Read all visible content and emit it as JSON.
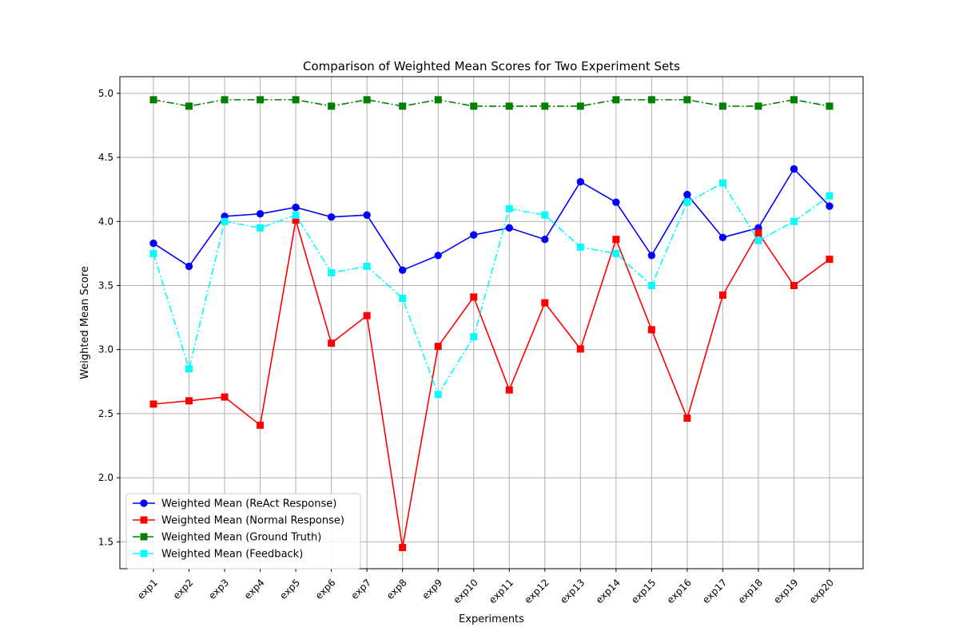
{
  "chart_data": {
    "type": "line",
    "title": "Comparison of Weighted Mean Scores for Two Experiment Sets",
    "xlabel": "Experiments",
    "ylabel": "Weighted Mean Score",
    "categories": [
      "exp1",
      "exp2",
      "exp3",
      "exp4",
      "exp5",
      "exp6",
      "exp7",
      "exp8",
      "exp9",
      "exp10",
      "exp11",
      "exp12",
      "exp13",
      "exp14",
      "exp15",
      "exp16",
      "exp17",
      "exp18",
      "exp19",
      "exp20"
    ],
    "ylim": [
      1.29,
      5.13
    ],
    "yticks": [
      "1.5",
      "2.0",
      "2.5",
      "3.0",
      "3.5",
      "4.0",
      "4.5",
      "5.0"
    ],
    "grid": true,
    "legend_position": "lower-left",
    "series": [
      {
        "name": "Weighted Mean (ReAct Response)",
        "color": "#0000ff",
        "marker": "circle",
        "linestyle": "solid",
        "values": [
          3.83,
          3.65,
          4.04,
          4.06,
          4.11,
          4.035,
          4.05,
          3.62,
          3.735,
          3.895,
          3.95,
          3.86,
          4.31,
          4.15,
          3.735,
          4.21,
          3.875,
          3.95,
          4.41,
          4.12
        ]
      },
      {
        "name": "Weighted Mean (Normal Response)",
        "color": "#ff0000",
        "marker": "square",
        "linestyle": "solid",
        "values": [
          2.575,
          2.6,
          2.63,
          2.41,
          4.01,
          3.05,
          3.265,
          1.455,
          3.025,
          3.41,
          2.685,
          3.365,
          3.005,
          3.86,
          3.155,
          2.465,
          3.425,
          3.91,
          3.5,
          3.705
        ]
      },
      {
        "name": "Weighted Mean (Ground Truth)",
        "color": "#008000",
        "marker": "square",
        "linestyle": "dashdot",
        "values": [
          4.95,
          4.9,
          4.95,
          4.95,
          4.95,
          4.9,
          4.95,
          4.9,
          4.95,
          4.9,
          4.9,
          4.9,
          4.9,
          4.95,
          4.95,
          4.95,
          4.9,
          4.9,
          4.95,
          4.9
        ]
      },
      {
        "name": "Weighted Mean (Feedback)",
        "color": "#00ffff",
        "marker": "square",
        "linestyle": "dashdot",
        "values": [
          3.75,
          2.85,
          4.0,
          3.95,
          4.05,
          3.6,
          3.65,
          3.4,
          2.65,
          3.1,
          4.1,
          4.05,
          3.8,
          3.75,
          3.5,
          4.15,
          4.3,
          3.85,
          4.0,
          4.2
        ]
      }
    ]
  }
}
